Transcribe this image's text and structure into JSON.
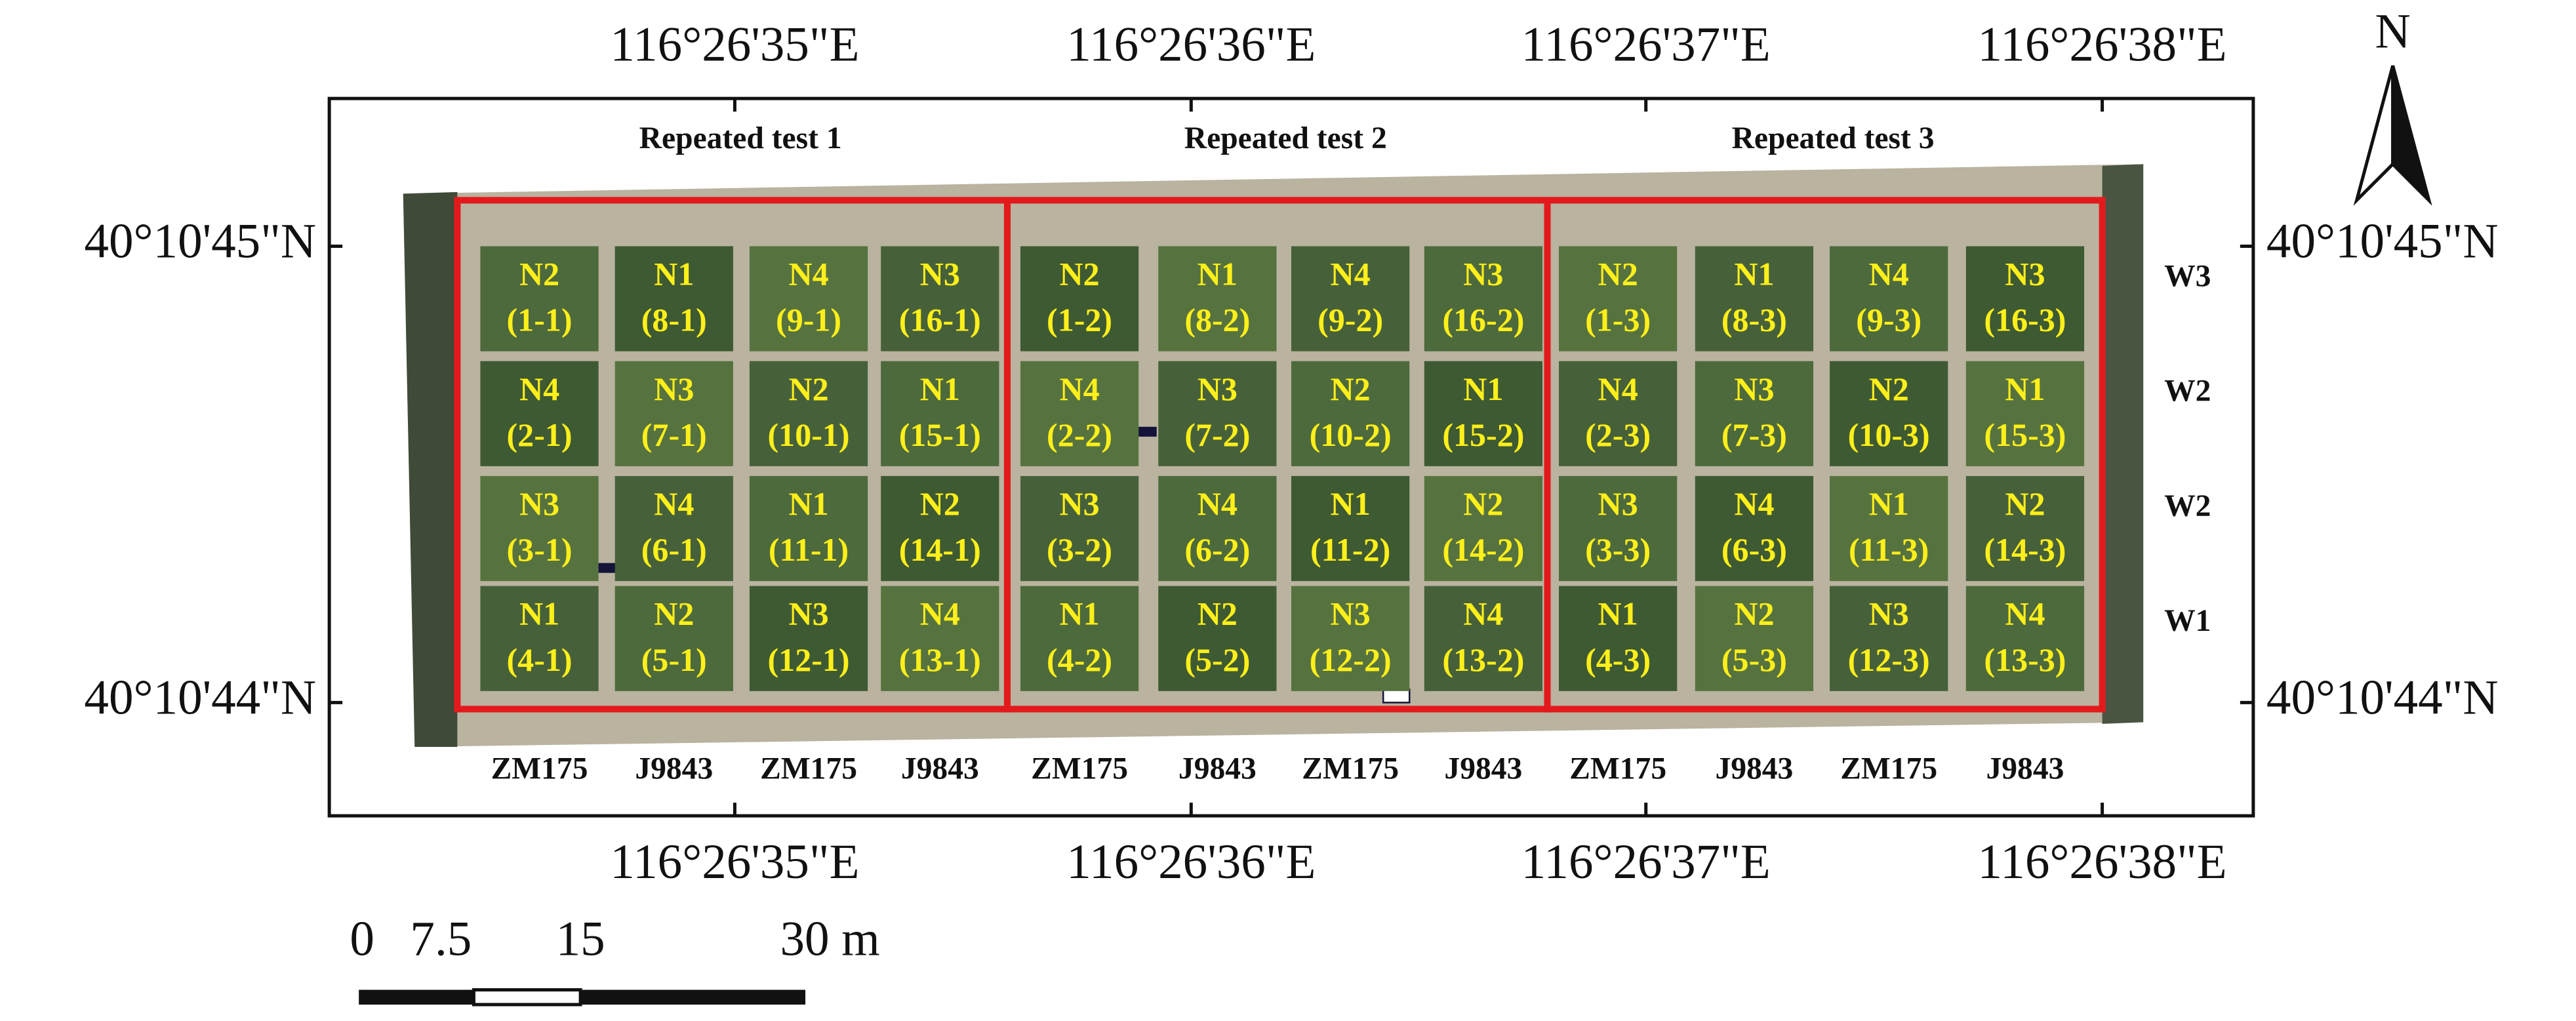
{
  "lon_labels": [
    "116°26'35\"E",
    "116°26'36\"E",
    "116°26'37\"E",
    "116°26'38\"E"
  ],
  "lat_labels": [
    "40°10'45\"N",
    "40°10'44\"N"
  ],
  "north": "N",
  "scale_labels": [
    "0",
    "7.5",
    "15",
    "30 m"
  ],
  "water_levels": [
    "W3",
    "W2",
    "W2",
    "W1"
  ],
  "cultivars": [
    "ZM175",
    "J9843",
    "ZM175",
    "J9843",
    "ZM175",
    "J9843",
    "ZM175",
    "J9843",
    "ZM175",
    "J9843",
    "ZM175",
    "J9843"
  ],
  "tests": [
    {
      "title": "Repeated test 1",
      "plots": [
        [
          {
            "n": "N2",
            "id": "(1-1)"
          },
          {
            "n": "N1",
            "id": "(8-1)"
          },
          {
            "n": "N4",
            "id": "(9-1)"
          },
          {
            "n": "N3",
            "id": "(16-1)"
          }
        ],
        [
          {
            "n": "N4",
            "id": "(2-1)"
          },
          {
            "n": "N3",
            "id": "(7-1)"
          },
          {
            "n": "N2",
            "id": "(10-1)"
          },
          {
            "n": "N1",
            "id": "(15-1)"
          }
        ],
        [
          {
            "n": "N3",
            "id": "(3-1)"
          },
          {
            "n": "N4",
            "id": "(6-1)"
          },
          {
            "n": "N1",
            "id": "(11-1)"
          },
          {
            "n": "N2",
            "id": "(14-1)"
          }
        ],
        [
          {
            "n": "N1",
            "id": "(4-1)"
          },
          {
            "n": "N2",
            "id": "(5-1)"
          },
          {
            "n": "N3",
            "id": "(12-1)"
          },
          {
            "n": "N4",
            "id": "(13-1)"
          }
        ]
      ]
    },
    {
      "title": "Repeated test 2",
      "plots": [
        [
          {
            "n": "N2",
            "id": "(1-2)"
          },
          {
            "n": "N1",
            "id": "(8-2)"
          },
          {
            "n": "N4",
            "id": "(9-2)"
          },
          {
            "n": "N3",
            "id": "(16-2)"
          }
        ],
        [
          {
            "n": "N4",
            "id": "(2-2)"
          },
          {
            "n": "N3",
            "id": "(7-2)"
          },
          {
            "n": "N2",
            "id": "(10-2)"
          },
          {
            "n": "N1",
            "id": "(15-2)"
          }
        ],
        [
          {
            "n": "N3",
            "id": "(3-2)"
          },
          {
            "n": "N4",
            "id": "(6-2)"
          },
          {
            "n": "N1",
            "id": "(11-2)"
          },
          {
            "n": "N2",
            "id": "(14-2)"
          }
        ],
        [
          {
            "n": "N1",
            "id": "(4-2)"
          },
          {
            "n": "N2",
            "id": "(5-2)"
          },
          {
            "n": "N3",
            "id": "(12-2)"
          },
          {
            "n": "N4",
            "id": "(13-2)"
          }
        ]
      ]
    },
    {
      "title": "Repeated test 3",
      "plots": [
        [
          {
            "n": "N2",
            "id": "(1-3)"
          },
          {
            "n": "N1",
            "id": "(8-3)"
          },
          {
            "n": "N4",
            "id": "(9-3)"
          },
          {
            "n": "N3",
            "id": "(16-3)"
          }
        ],
        [
          {
            "n": "N4",
            "id": "(2-3)"
          },
          {
            "n": "N3",
            "id": "(7-3)"
          },
          {
            "n": "N2",
            "id": "(10-3)"
          },
          {
            "n": "N1",
            "id": "(15-3)"
          }
        ],
        [
          {
            "n": "N3",
            "id": "(3-3)"
          },
          {
            "n": "N4",
            "id": "(6-3)"
          },
          {
            "n": "N1",
            "id": "(11-3)"
          },
          {
            "n": "N2",
            "id": "(14-3)"
          }
        ],
        [
          {
            "n": "N1",
            "id": "(4-3)"
          },
          {
            "n": "N2",
            "id": "(5-3)"
          },
          {
            "n": "N3",
            "id": "(12-3)"
          },
          {
            "n": "N4",
            "id": "(13-3)"
          }
        ]
      ]
    }
  ]
}
